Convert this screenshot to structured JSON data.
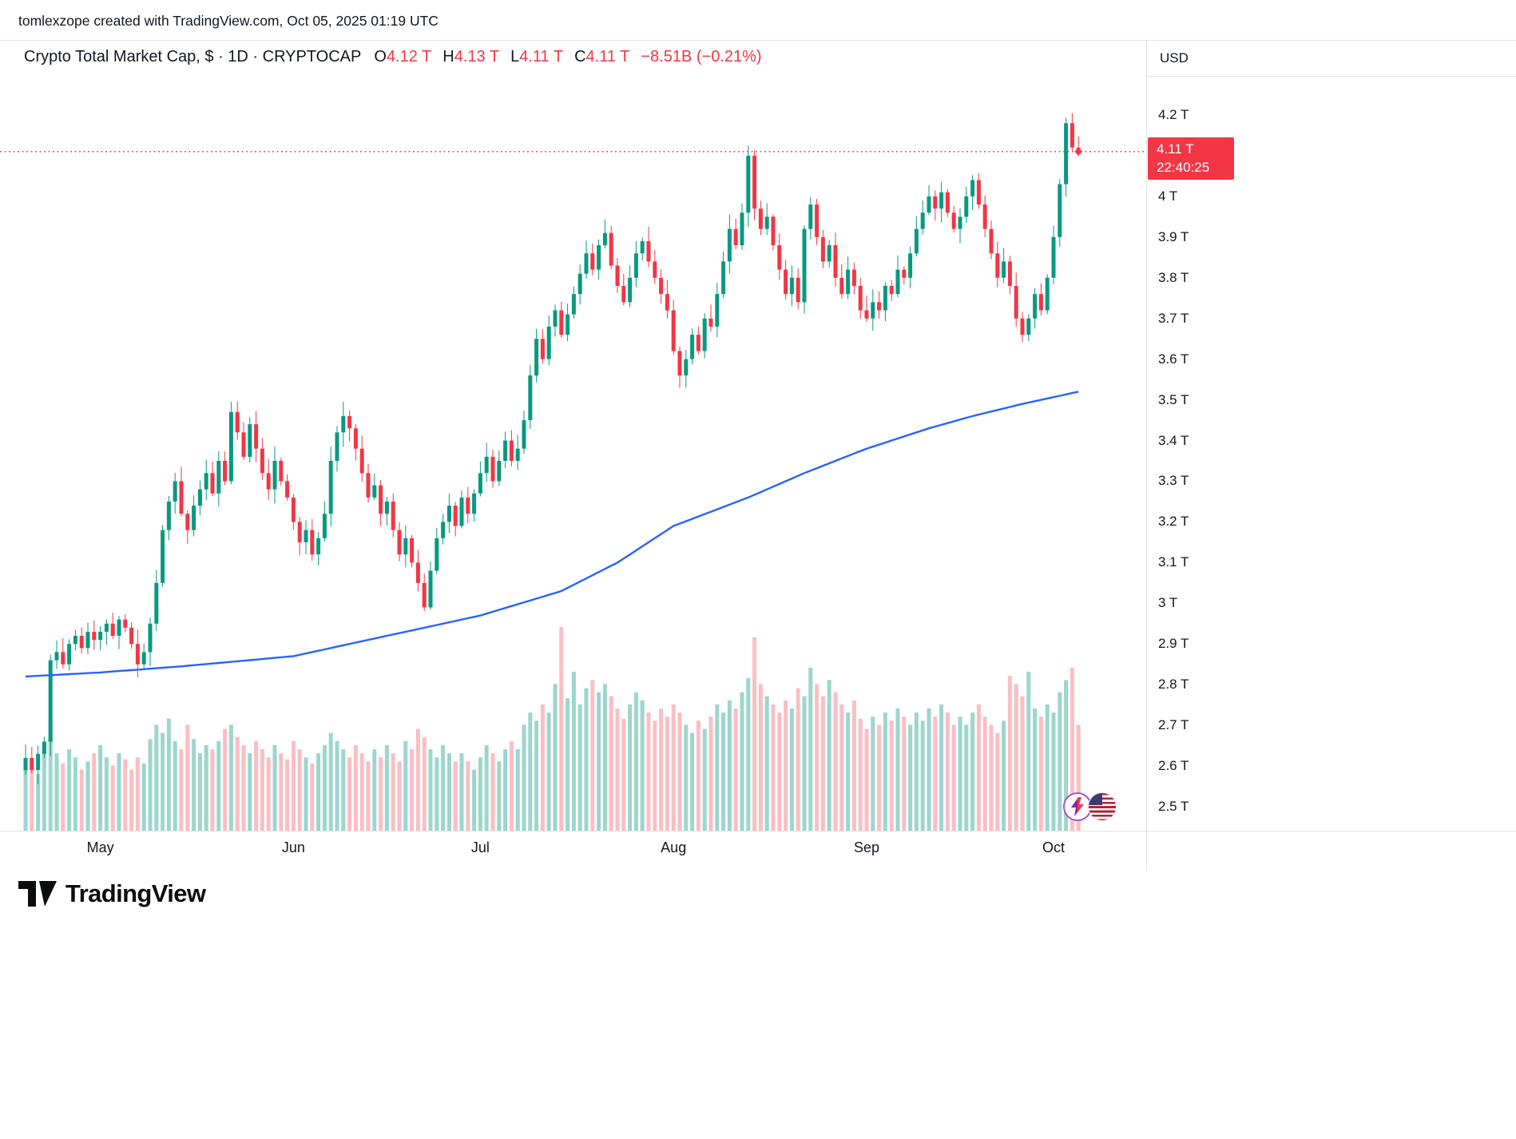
{
  "attribution": "tomlexzope created with TradingView.com, Oct 05, 2025 01:19 UTC",
  "legend": {
    "title": "Crypto Total Market Cap, $ · 1D · CRYPTOCAP",
    "open_label": "O",
    "open": "4.12 T",
    "high_label": "H",
    "high": "4.13 T",
    "low_label": "L",
    "low": "4.11 T",
    "close_label": "C",
    "close": "4.11 T",
    "change": "−8.51B (−0.21%)"
  },
  "price_scale": {
    "currency": "USD",
    "badge": {
      "price": "4.11 T",
      "countdown": "22:40:25"
    },
    "labels": [
      {
        "text": "4.2 T",
        "value": 4.2
      },
      {
        "text": "4 T",
        "value": 4.0
      },
      {
        "text": "3.9 T",
        "value": 3.9
      },
      {
        "text": "3.8 T",
        "value": 3.8
      },
      {
        "text": "3.7 T",
        "value": 3.7
      },
      {
        "text": "3.6 T",
        "value": 3.6
      },
      {
        "text": "3.5 T",
        "value": 3.5
      },
      {
        "text": "3.4 T",
        "value": 3.4
      },
      {
        "text": "3.3 T",
        "value": 3.3
      },
      {
        "text": "3.2 T",
        "value": 3.2
      },
      {
        "text": "3.1 T",
        "value": 3.1
      },
      {
        "text": "3 T",
        "value": 3.0
      },
      {
        "text": "2.9 T",
        "value": 2.9
      },
      {
        "text": "2.8 T",
        "value": 2.8
      },
      {
        "text": "2.7 T",
        "value": 2.7
      },
      {
        "text": "2.6 T",
        "value": 2.6
      },
      {
        "text": "2.5 T",
        "value": 2.5
      }
    ]
  },
  "footer": {
    "brand": "TradingView"
  },
  "chart_data": {
    "type": "candlestick",
    "title": "Crypto Total Market Cap",
    "symbol": "CRYPTOCAP",
    "interval": "1D",
    "currency": "USD",
    "unit": "T",
    "y_axis": {
      "min": 2.5,
      "max": 4.2,
      "unit": "T"
    },
    "last_price": 4.11,
    "last_ohlc": {
      "open": 4.12,
      "high": 4.13,
      "low": 4.11,
      "close": 4.11
    },
    "change_abs_billions": -8.51,
    "change_pct": -0.21,
    "time_labels": [
      {
        "label": "May",
        "index": 12
      },
      {
        "label": "Jun",
        "index": 43
      },
      {
        "label": "Jul",
        "index": 73
      },
      {
        "label": "Aug",
        "index": 104
      },
      {
        "label": "Sep",
        "index": 135
      },
      {
        "label": "Oct",
        "index": 165
      }
    ],
    "closes": [
      2.62,
      2.59,
      2.63,
      2.66,
      2.86,
      2.88,
      2.85,
      2.9,
      2.92,
      2.89,
      2.93,
      2.91,
      2.93,
      2.95,
      2.92,
      2.96,
      2.94,
      2.9,
      2.85,
      2.88,
      2.95,
      3.05,
      3.18,
      3.25,
      3.3,
      3.22,
      3.18,
      3.24,
      3.28,
      3.32,
      3.27,
      3.35,
      3.3,
      3.47,
      3.42,
      3.36,
      3.44,
      3.38,
      3.32,
      3.28,
      3.35,
      3.3,
      3.26,
      3.2,
      3.15,
      3.18,
      3.12,
      3.16,
      3.22,
      3.35,
      3.42,
      3.46,
      3.43,
      3.38,
      3.32,
      3.26,
      3.29,
      3.22,
      3.25,
      3.18,
      3.12,
      3.16,
      3.1,
      3.05,
      2.99,
      3.08,
      3.16,
      3.2,
      3.24,
      3.19,
      3.26,
      3.22,
      3.27,
      3.32,
      3.36,
      3.3,
      3.35,
      3.4,
      3.35,
      3.38,
      3.45,
      3.56,
      3.65,
      3.6,
      3.68,
      3.72,
      3.66,
      3.71,
      3.76,
      3.81,
      3.86,
      3.82,
      3.88,
      3.91,
      3.83,
      3.78,
      3.74,
      3.8,
      3.86,
      3.89,
      3.84,
      3.8,
      3.76,
      3.72,
      3.62,
      3.56,
      3.6,
      3.66,
      3.62,
      3.7,
      3.68,
      3.76,
      3.84,
      3.92,
      3.88,
      3.96,
      4.1,
      3.97,
      3.92,
      3.95,
      3.88,
      3.82,
      3.76,
      3.8,
      3.74,
      3.92,
      3.98,
      3.9,
      3.84,
      3.88,
      3.8,
      3.76,
      3.82,
      3.78,
      3.72,
      3.7,
      3.74,
      3.72,
      3.78,
      3.76,
      3.82,
      3.8,
      3.86,
      3.92,
      3.96,
      4.0,
      3.97,
      4.01,
      3.96,
      3.92,
      3.95,
      4.0,
      4.04,
      3.98,
      3.92,
      3.86,
      3.8,
      3.84,
      3.78,
      3.7,
      3.66,
      3.7,
      3.76,
      3.72,
      3.8,
      3.9,
      4.03,
      4.18,
      4.12,
      4.11
    ],
    "volumes": [
      0.3,
      0.35,
      0.28,
      0.42,
      0.55,
      0.38,
      0.33,
      0.4,
      0.36,
      0.3,
      0.34,
      0.38,
      0.42,
      0.36,
      0.32,
      0.38,
      0.35,
      0.3,
      0.36,
      0.33,
      0.45,
      0.52,
      0.48,
      0.55,
      0.44,
      0.4,
      0.52,
      0.45,
      0.38,
      0.42,
      0.4,
      0.44,
      0.5,
      0.52,
      0.46,
      0.42,
      0.38,
      0.44,
      0.4,
      0.36,
      0.42,
      0.38,
      0.35,
      0.44,
      0.4,
      0.36,
      0.33,
      0.38,
      0.42,
      0.48,
      0.44,
      0.4,
      0.36,
      0.42,
      0.38,
      0.34,
      0.4,
      0.36,
      0.42,
      0.38,
      0.34,
      0.44,
      0.4,
      0.5,
      0.46,
      0.4,
      0.36,
      0.42,
      0.38,
      0.34,
      0.38,
      0.34,
      0.3,
      0.36,
      0.42,
      0.38,
      0.34,
      0.4,
      0.44,
      0.4,
      0.52,
      0.58,
      0.54,
      0.62,
      0.58,
      0.72,
      1.0,
      0.65,
      0.78,
      0.62,
      0.7,
      0.74,
      0.68,
      0.72,
      0.66,
      0.6,
      0.55,
      0.62,
      0.68,
      0.64,
      0.58,
      0.54,
      0.6,
      0.56,
      0.62,
      0.58,
      0.52,
      0.48,
      0.54,
      0.5,
      0.56,
      0.62,
      0.58,
      0.64,
      0.6,
      0.68,
      0.75,
      0.95,
      0.72,
      0.66,
      0.62,
      0.58,
      0.64,
      0.6,
      0.7,
      0.66,
      0.8,
      0.72,
      0.66,
      0.74,
      0.68,
      0.62,
      0.58,
      0.64,
      0.55,
      0.5,
      0.56,
      0.52,
      0.58,
      0.54,
      0.6,
      0.56,
      0.52,
      0.58,
      0.54,
      0.6,
      0.56,
      0.62,
      0.58,
      0.52,
      0.56,
      0.52,
      0.58,
      0.62,
      0.56,
      0.52,
      0.48,
      0.54,
      0.76,
      0.72,
      0.66,
      0.78,
      0.6,
      0.56,
      0.62,
      0.58,
      0.68,
      0.74,
      0.8,
      0.52
    ],
    "ma_anchors": [
      [
        0,
        2.82
      ],
      [
        12,
        2.83
      ],
      [
        25,
        2.845
      ],
      [
        43,
        2.87
      ],
      [
        55,
        2.91
      ],
      [
        73,
        2.97
      ],
      [
        86,
        3.03
      ],
      [
        95,
        3.1
      ],
      [
        104,
        3.19
      ],
      [
        116,
        3.26
      ],
      [
        125,
        3.32
      ],
      [
        135,
        3.38
      ],
      [
        145,
        3.43
      ],
      [
        152,
        3.46
      ],
      [
        160,
        3.49
      ],
      [
        169,
        3.52
      ]
    ],
    "colors": {
      "up": "#089981",
      "down": "#f23645",
      "vol_up": "rgba(8,153,129,0.40)",
      "vol_down": "rgba(242,54,69,0.32)",
      "ma": "#2962ff",
      "last_price_line": "#f23645"
    },
    "legend_position": "top-left",
    "grid": false
  }
}
